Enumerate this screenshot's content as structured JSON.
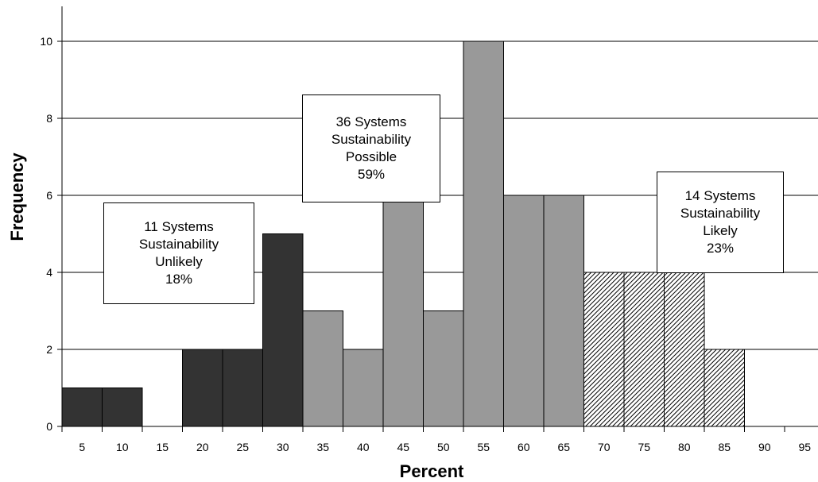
{
  "chart_data": {
    "type": "bar",
    "title": "",
    "xlabel": "Percent",
    "ylabel": "Frequency",
    "ylim": [
      0,
      11
    ],
    "yticks": [
      0,
      2,
      4,
      6,
      8,
      10
    ],
    "grid": true,
    "categories": [
      "5",
      "10",
      "15",
      "20",
      "25",
      "30",
      "35",
      "40",
      "45",
      "50",
      "55",
      "60",
      "65",
      "70",
      "75",
      "80",
      "85",
      "90",
      "95"
    ],
    "values": [
      1,
      1,
      0,
      2,
      2,
      5,
      3,
      2,
      6,
      3,
      10,
      6,
      6,
      4,
      4,
      4,
      2,
      0,
      0
    ],
    "groups": [
      {
        "key": "unlikely",
        "fill": "#333333",
        "pattern": "solid",
        "categories": [
          "5",
          "10",
          "15",
          "20",
          "25",
          "30"
        ]
      },
      {
        "key": "possible",
        "fill": "#999999",
        "pattern": "solid",
        "categories": [
          "35",
          "40",
          "45",
          "50",
          "55",
          "60",
          "65"
        ]
      },
      {
        "key": "likely",
        "fill": "#ffffff",
        "pattern": "diagonal-hatch",
        "categories": [
          "70",
          "75",
          "80",
          "85",
          "90",
          "95"
        ]
      }
    ],
    "annotations": [
      {
        "group": "unlikely",
        "lines": [
          "11 Systems",
          "Sustainability",
          "Unlikely",
          "18%"
        ]
      },
      {
        "group": "possible",
        "lines": [
          "36 Systems",
          "Sustainability",
          "Possible",
          "59%"
        ]
      },
      {
        "group": "likely",
        "lines": [
          "14 Systems",
          "Sustainability",
          "Likely",
          "23%"
        ]
      }
    ]
  }
}
